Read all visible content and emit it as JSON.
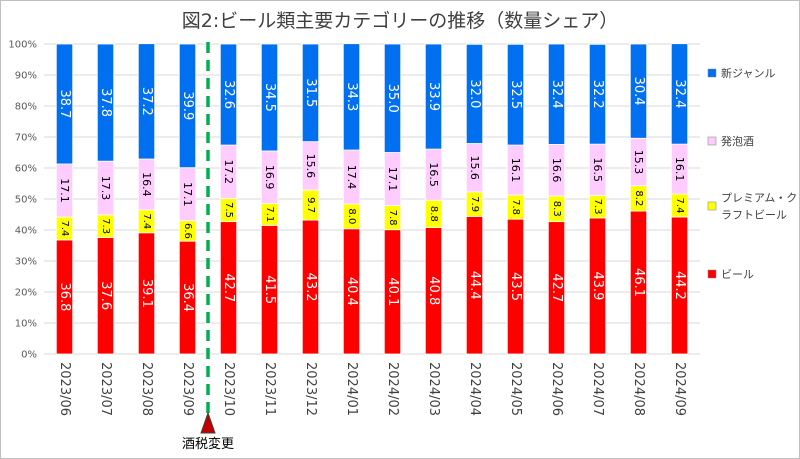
{
  "chart_data": {
    "type": "bar",
    "stacked": true,
    "percent": true,
    "title": "図2:ビール類主要カテゴリーの推移（数量シェア）",
    "categories": [
      "2023/06",
      "2023/07",
      "2023/08",
      "2023/09",
      "2023/10",
      "2023/11",
      "2023/12",
      "2024/01",
      "2024/02",
      "2024/03",
      "2024/04",
      "2024/05",
      "2024/06",
      "2024/07",
      "2024/08",
      "2024/09"
    ],
    "series": [
      {
        "name": "ビール",
        "color": "#ff0000",
        "values": [
          36.8,
          37.6,
          39.1,
          36.4,
          42.7,
          41.5,
          43.2,
          40.4,
          40.1,
          40.8,
          44.4,
          43.5,
          42.7,
          43.9,
          46.1,
          44.2
        ],
        "labels": [
          "36.8",
          "37.6",
          "39.1",
          "36.4",
          "42.7",
          "41.5",
          "43.2",
          "40.4",
          "40.1",
          "40.8",
          "44.4",
          "43.5",
          "42.7",
          "43.9",
          "46.1",
          "44.2"
        ]
      },
      {
        "name": "プレミアム・クラフトビール",
        "legend_lines": [
          "プレミアム・ク",
          "ラフトビール"
        ],
        "color": "#ffff00",
        "values": [
          7.4,
          7.3,
          7.4,
          6.6,
          7.5,
          7.1,
          9.7,
          8.0,
          7.8,
          8.8,
          7.9,
          7.8,
          8.3,
          7.3,
          8.2,
          7.4
        ],
        "labels": [
          "7.4",
          "7.3",
          "7.4",
          "6.6",
          "7.5",
          "7.1",
          "9.7",
          "8.0",
          "7.8",
          "8.8",
          "7.9",
          "7.8",
          "8.3",
          "7.3",
          "8.2",
          "7.4"
        ]
      },
      {
        "name": "発泡酒",
        "color": "#ffccff",
        "values": [
          17.1,
          17.3,
          16.4,
          17.1,
          17.2,
          16.9,
          15.6,
          17.4,
          17.1,
          16.5,
          15.6,
          16.1,
          16.6,
          16.5,
          15.3,
          16.1
        ],
        "labels": [
          "17.1",
          "17.3",
          "16.4",
          "17.1",
          "17.2",
          "16.9",
          "15.6",
          "17.4",
          "17.1",
          "16.5",
          "15.6",
          "16.1",
          "16.6",
          "16.5",
          "15.3",
          "16.1"
        ]
      },
      {
        "name": "新ジャンル",
        "color": "#0070f0",
        "values": [
          38.7,
          37.8,
          37.2,
          39.9,
          32.6,
          34.5,
          31.5,
          34.3,
          35.0,
          33.9,
          32.0,
          32.5,
          32.4,
          32.2,
          30.4,
          32.4
        ],
        "labels": [
          "38.7",
          "37.8",
          "37.2",
          "39.9",
          "32.6",
          "34.5",
          "31.5",
          "34.3",
          "35.0",
          "33.9",
          "32.0",
          "32.5",
          "32.4",
          "32.2",
          "30.4",
          "32.4"
        ]
      }
    ],
    "y_ticks": [
      "0%",
      "10%",
      "20%",
      "30%",
      "40%",
      "50%",
      "60%",
      "70%",
      "80%",
      "90%",
      "100%"
    ],
    "ylim": [
      0,
      100
    ],
    "legend_position": "right",
    "annotation": {
      "label": "酒税変更",
      "between": [
        "2023/09",
        "2023/10"
      ],
      "color": "#00b050",
      "marker_color": "#c00000"
    }
  }
}
